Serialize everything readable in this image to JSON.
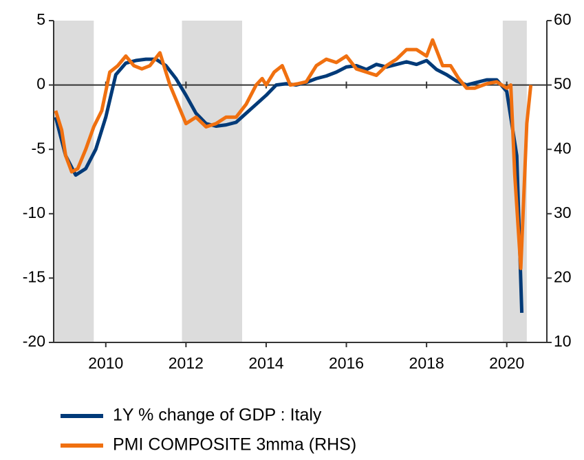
{
  "chart_data": {
    "type": "line",
    "xlim": [
      2008.7,
      2021.0
    ],
    "xticks": [
      2010,
      2012,
      2014,
      2016,
      2018,
      2020
    ],
    "ylim": [
      -20,
      5
    ],
    "yticks": [
      -20,
      -15,
      -10,
      -5,
      0,
      5
    ],
    "y2lim": [
      10,
      60
    ],
    "y2ticks": [
      10,
      20,
      30,
      40,
      50,
      60
    ],
    "shaded_ranges": [
      [
        2008.7,
        2009.7
      ],
      [
        2011.9,
        2013.4
      ],
      [
        2019.9,
        2020.5
      ]
    ],
    "shade_color": "#dcdcdc",
    "legend": "bottom",
    "series": [
      {
        "name": "1Y % change of GDP : Italy",
        "color": "#003a78",
        "x": [
          2008.75,
          2009.0,
          2009.25,
          2009.5,
          2009.75,
          2010.0,
          2010.25,
          2010.5,
          2010.75,
          2011.0,
          2011.25,
          2011.5,
          2011.75,
          2012.0,
          2012.25,
          2012.5,
          2012.75,
          2013.0,
          2013.25,
          2013.5,
          2013.75,
          2014.0,
          2014.25,
          2014.5,
          2014.75,
          2015.0,
          2015.25,
          2015.5,
          2015.75,
          2016.0,
          2016.25,
          2016.5,
          2016.75,
          2017.0,
          2017.25,
          2017.5,
          2017.75,
          2018.0,
          2018.25,
          2018.5,
          2018.75,
          2019.0,
          2019.25,
          2019.5,
          2019.75,
          2020.0,
          2020.25,
          2020.375
        ],
        "values": [
          -2.5,
          -5.5,
          -7.0,
          -6.5,
          -5.0,
          -2.5,
          0.8,
          1.7,
          1.9,
          2.0,
          2.0,
          1.5,
          0.5,
          -0.8,
          -2.2,
          -3.0,
          -3.2,
          -3.1,
          -2.9,
          -2.2,
          -1.5,
          -0.8,
          0.0,
          0.1,
          0.0,
          0.2,
          0.5,
          0.7,
          1.0,
          1.4,
          1.5,
          1.2,
          1.6,
          1.4,
          1.6,
          1.8,
          1.6,
          1.9,
          1.2,
          0.8,
          0.3,
          0.0,
          0.2,
          0.4,
          0.4,
          -0.5,
          -5.5,
          -17.7
        ]
      },
      {
        "name": "PMI COMPOSITE 3mma (RHS)",
        "color": "#f07010",
        "axis": "y2",
        "x": [
          2008.75,
          2008.9,
          2009.0,
          2009.15,
          2009.3,
          2009.5,
          2009.7,
          2009.9,
          2010.1,
          2010.3,
          2010.5,
          2010.7,
          2010.9,
          2011.1,
          2011.35,
          2011.6,
          2011.8,
          2012.0,
          2012.25,
          2012.5,
          2012.75,
          2013.0,
          2013.25,
          2013.5,
          2013.75,
          2013.9,
          2014.0,
          2014.2,
          2014.4,
          2014.6,
          2014.8,
          2015.0,
          2015.25,
          2015.5,
          2015.75,
          2016.0,
          2016.25,
          2016.5,
          2016.75,
          2017.0,
          2017.25,
          2017.5,
          2017.75,
          2018.0,
          2018.15,
          2018.4,
          2018.6,
          2018.8,
          2019.0,
          2019.2,
          2019.5,
          2019.75,
          2020.0,
          2020.1,
          2020.2,
          2020.35,
          2020.5,
          2020.6
        ],
        "values": [
          46,
          43,
          39,
          36.5,
          37,
          40,
          43.5,
          46,
          52,
          53,
          54.5,
          53,
          52.5,
          53,
          55,
          50,
          47,
          44,
          45,
          43.5,
          44,
          45,
          45,
          47,
          50,
          51,
          50,
          52,
          53,
          50,
          50.2,
          50.5,
          53,
          54,
          53.5,
          54.5,
          52.5,
          52,
          51.5,
          53,
          54,
          55.5,
          55.5,
          54.5,
          57,
          53,
          53,
          51,
          49.5,
          49.5,
          50.2,
          50.5,
          49.5,
          50,
          36,
          21.5,
          44,
          50
        ]
      }
    ]
  }
}
